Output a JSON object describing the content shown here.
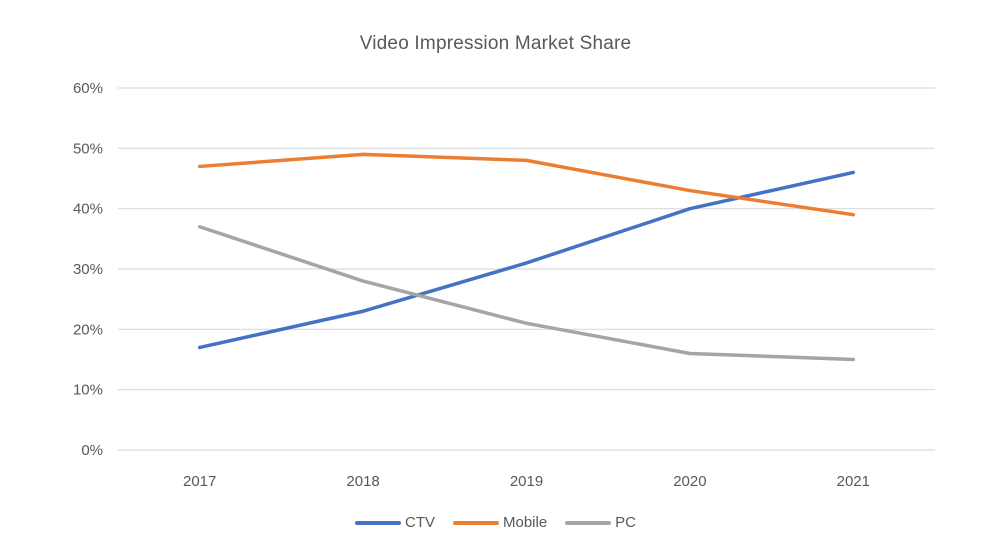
{
  "chart_data": {
    "type": "line",
    "title": "Video Impression Market Share",
    "categories": [
      "2017",
      "2018",
      "2019",
      "2020",
      "2021"
    ],
    "series": [
      {
        "name": "CTV",
        "color": "#4472C4",
        "values": [
          17,
          23,
          31,
          40,
          46
        ]
      },
      {
        "name": "Mobile",
        "color": "#ED7D31",
        "values": [
          47,
          49,
          48,
          43,
          39
        ]
      },
      {
        "name": "PC",
        "color": "#A5A5A5",
        "values": [
          37,
          28,
          21,
          16,
          15
        ]
      }
    ],
    "xlabel": "",
    "ylabel": "",
    "ylim": [
      0,
      60
    ],
    "ytick_step": 10,
    "ytick_labels": [
      "0%",
      "10%",
      "20%",
      "30%",
      "40%",
      "50%",
      "60%"
    ],
    "grid": true,
    "legend_position": "bottom",
    "colors": {
      "gridline": "#D9D9D9",
      "text": "#595959",
      "background": "#FFFFFF"
    }
  }
}
